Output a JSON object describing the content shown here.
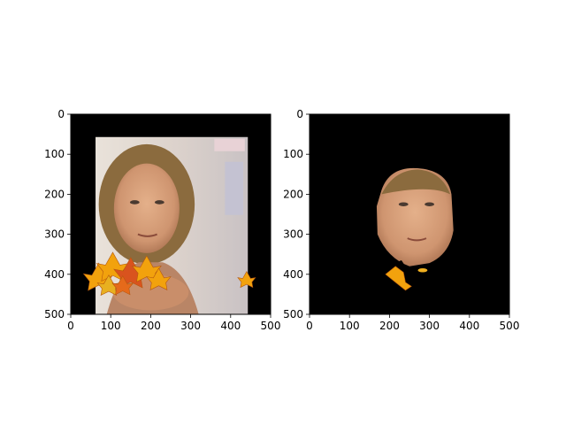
{
  "chart_data": [
    {
      "type": "image",
      "title": "",
      "xlabel": "",
      "ylabel": "",
      "xlim": [
        0,
        500
      ],
      "ylim": [
        500,
        0
      ],
      "xticks": [
        0,
        100,
        200,
        300,
        400,
        500
      ],
      "yticks": [
        0,
        100,
        200,
        300,
        400,
        500
      ],
      "xtick_labels": [
        "0",
        "100",
        "200",
        "300",
        "400",
        "500"
      ],
      "ytick_labels": [
        "0",
        "100",
        "200",
        "300",
        "400",
        "500"
      ],
      "background_color": "#000000",
      "content": "portrait-with-autumn-leaves",
      "content_extent": {
        "x": [
          62,
          443
        ],
        "y": [
          57,
          500
        ]
      }
    },
    {
      "type": "image",
      "title": "",
      "xlabel": "",
      "ylabel": "",
      "xlim": [
        0,
        500
      ],
      "ylim": [
        500,
        0
      ],
      "xticks": [
        0,
        100,
        200,
        300,
        400,
        500
      ],
      "yticks": [
        0,
        100,
        200,
        300,
        400,
        500
      ],
      "xtick_labels": [
        "0",
        "100",
        "200",
        "300",
        "400",
        "500"
      ],
      "ytick_labels": [
        "0",
        "100",
        "200",
        "300",
        "400",
        "500"
      ],
      "background_color": "#000000",
      "content": "segmented-face-mask"
    }
  ],
  "colors": {
    "frame": "#000000",
    "skin": "#d9a07a",
    "hair": "#8b6b3e",
    "leaf_orange": "#f2a20d",
    "leaf_red": "#d9531e"
  }
}
